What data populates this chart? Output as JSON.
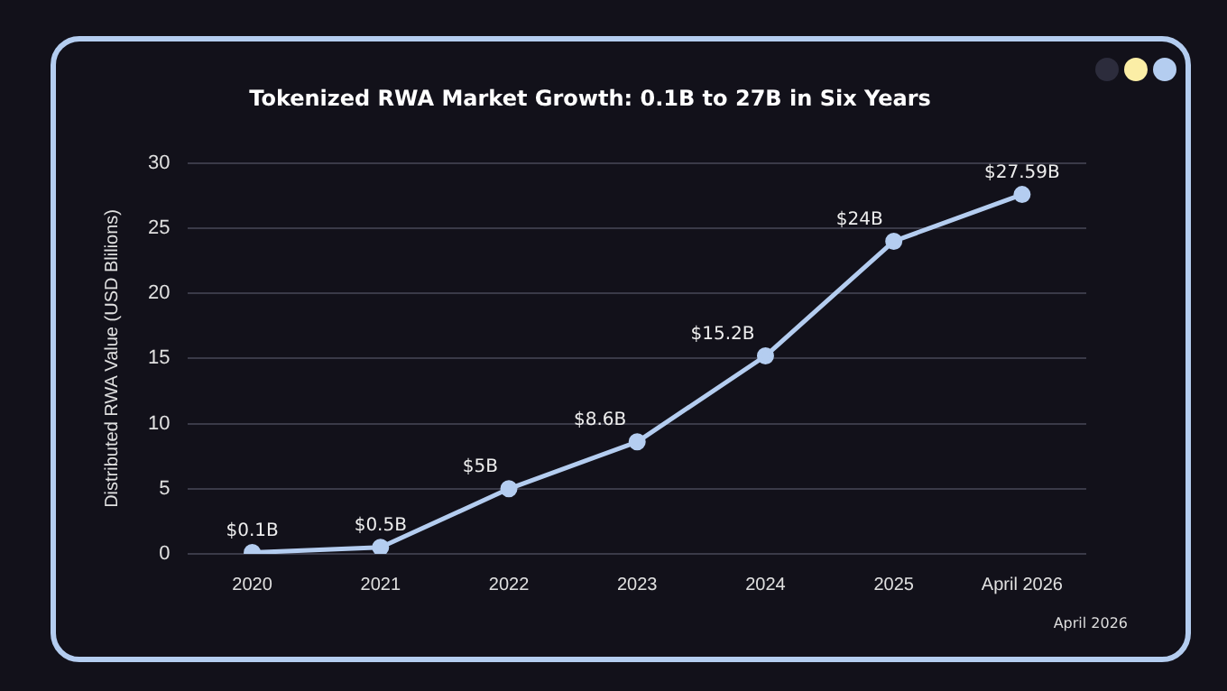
{
  "chart_data": {
    "type": "line",
    "title": "Tokenized RWA Market Growth: 0.1B to 27B in Six Years",
    "ylabel": "Distributed RWA Value (USD Blilions)",
    "categories": [
      "2020",
      "2021",
      "2022",
      "2023",
      "2024",
      "2025",
      "April 2026"
    ],
    "series": [
      {
        "color": "#b4cdf0",
        "values": [
          0.1,
          0.5,
          5,
          8.6,
          15.2,
          24,
          27.59
        ],
        "value_labels": [
          "$0.1B",
          "$0.5B",
          "$5B",
          "$8.6B",
          "$15.2B",
          "$24B",
          "$27.59B"
        ]
      }
    ],
    "ylim": [
      0,
      30
    ],
    "yticks": [
      0,
      5,
      10,
      15,
      20,
      25,
      30
    ],
    "grid": "y",
    "legend": false,
    "marker": "circle",
    "line_style": "solid",
    "annotations": [
      "April 2026"
    ]
  }
}
